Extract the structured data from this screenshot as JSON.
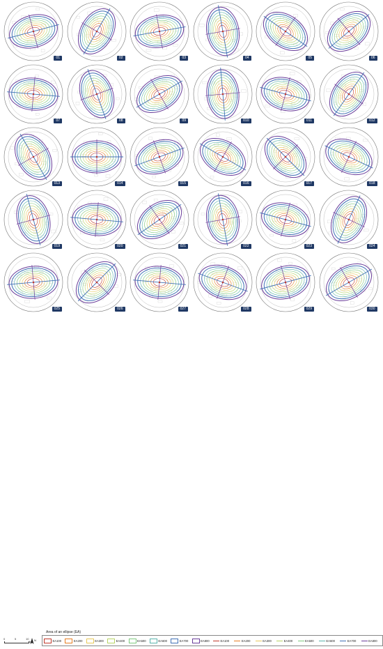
{
  "panels": [
    {
      "id": "01",
      "angle": -15
    },
    {
      "id": "02",
      "angle": -60
    },
    {
      "id": "03",
      "angle": -10
    },
    {
      "id": "04",
      "angle": 80
    },
    {
      "id": "05",
      "angle": 35
    },
    {
      "id": "06",
      "angle": -40
    },
    {
      "id": "07",
      "angle": 5
    },
    {
      "id": "08",
      "angle": 70
    },
    {
      "id": "09",
      "angle": -30
    },
    {
      "id": "010",
      "angle": 85
    },
    {
      "id": "011",
      "angle": 15
    },
    {
      "id": "012",
      "angle": -55
    },
    {
      "id": "013",
      "angle": 60
    },
    {
      "id": "014",
      "angle": 0
    },
    {
      "id": "015",
      "angle": -20
    },
    {
      "id": "016",
      "angle": 30
    },
    {
      "id": "017",
      "angle": 45
    },
    {
      "id": "018",
      "angle": 25
    },
    {
      "id": "019",
      "angle": 75
    },
    {
      "id": "020",
      "angle": 5
    },
    {
      "id": "021",
      "angle": -35
    },
    {
      "id": "022",
      "angle": 80
    },
    {
      "id": "023",
      "angle": 15
    },
    {
      "id": "024",
      "angle": -65
    },
    {
      "id": "025",
      "angle": -5
    },
    {
      "id": "026",
      "angle": -45
    },
    {
      "id": "027",
      "angle": 5
    },
    {
      "id": "028",
      "angle": 20
    },
    {
      "id": "029",
      "angle": -15
    },
    {
      "id": "030",
      "angle": -30
    }
  ],
  "legend": {
    "title": "Area of an ellipse (EA)",
    "ellipse_items": [
      {
        "label": "EA100",
        "color": "#c0392b"
      },
      {
        "label": "EA200",
        "color": "#e67e22"
      },
      {
        "label": "EA300",
        "color": "#e8c95a"
      },
      {
        "label": "EA400",
        "color": "#b8d465"
      },
      {
        "label": "EA500",
        "color": "#7fc97f"
      },
      {
        "label": "EA600",
        "color": "#5ab4ac"
      },
      {
        "label": "EA700",
        "color": "#3f6fb5"
      },
      {
        "label": "EA800",
        "color": "#6a3d9a"
      }
    ],
    "axis_items": [
      {
        "label": "EA100",
        "color": "#c0392b"
      },
      {
        "label": "EA200",
        "color": "#e67e22"
      },
      {
        "label": "EA300",
        "color": "#e8c95a"
      },
      {
        "label": "EA400",
        "color": "#b8d465"
      },
      {
        "label": "EA500",
        "color": "#7fc97f"
      },
      {
        "label": "EA600",
        "color": "#5ab4ac"
      },
      {
        "label": "EA700",
        "color": "#3f6fb5"
      },
      {
        "label": "EA800",
        "color": "#6a3d9a"
      }
    ]
  },
  "scale": {
    "ticks": [
      "0",
      "5",
      "10"
    ],
    "unit": "km"
  },
  "north_label": "N"
}
